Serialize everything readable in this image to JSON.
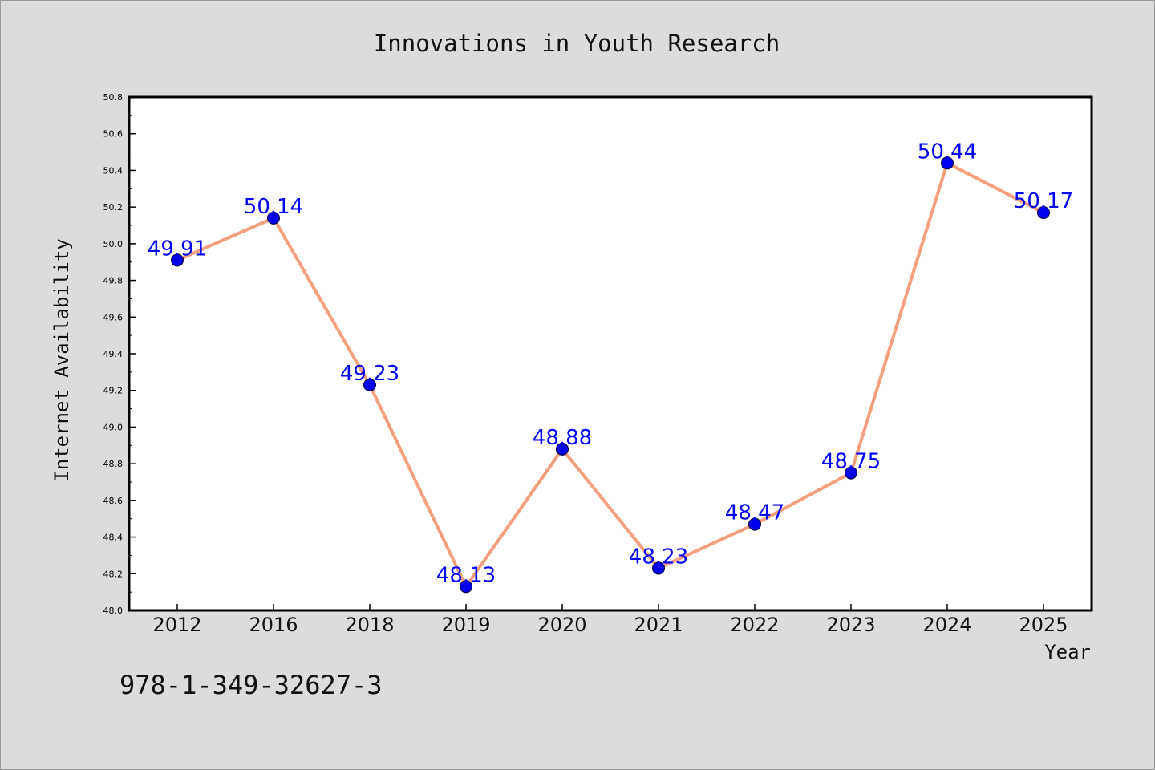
{
  "chart_data": {
    "type": "line",
    "title": "Innovations in Youth Research",
    "xlabel": "Year",
    "ylabel": "Internet Availability",
    "categories": [
      "2012",
      "2016",
      "2018",
      "2019",
      "2020",
      "2021",
      "2022",
      "2023",
      "2024",
      "2025"
    ],
    "series": [
      {
        "values": [
          49.91,
          50.14,
          49.23,
          48.13,
          48.88,
          48.23,
          48.47,
          48.75,
          50.44,
          50.17
        ],
        "data_labels": [
          "49.91",
          "50.14",
          "49.23",
          "48.13",
          "48.88",
          "48.23",
          "48.47",
          "48.75",
          "50.44",
          "50.17"
        ],
        "line_color": "#f4a07e",
        "marker_color": "#0000ee",
        "label_color": "#0000ff"
      }
    ],
    "ylim": [
      48.0,
      50.8
    ],
    "yticks": [
      "48.0",
      "48.2",
      "48.4",
      "48.6",
      "48.8",
      "49.0",
      "49.2",
      "49.4",
      "49.6",
      "49.8",
      "50.0",
      "50.2",
      "50.4",
      "50.6",
      "50.8"
    ],
    "grid": false,
    "legend": "none"
  },
  "annotation": {
    "isbn": "978-1-349-32627-3"
  },
  "colors": {
    "background": "#dcdcdc",
    "plot_area": "#ffffff",
    "axes": "#000000"
  }
}
